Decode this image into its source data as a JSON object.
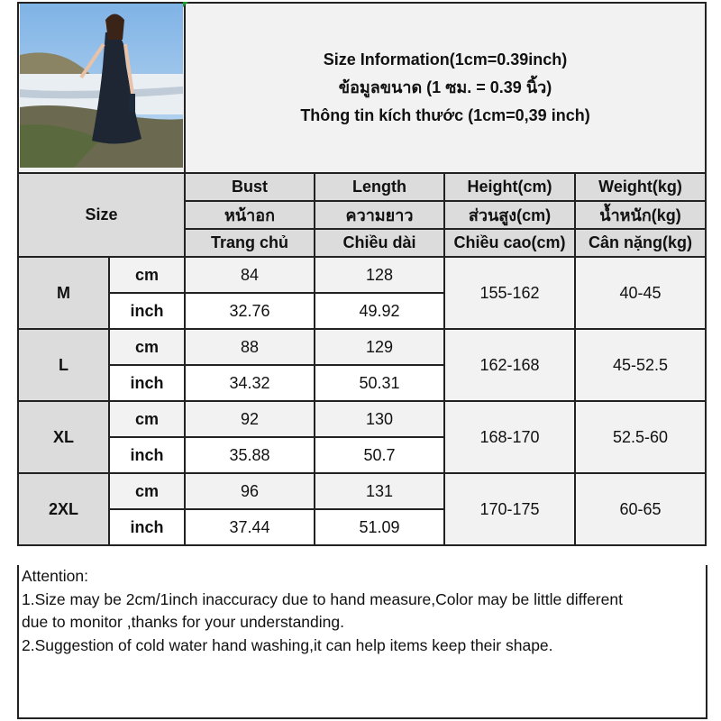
{
  "header": {
    "title_lines": [
      "Size Information(1cm=0.39inch)",
      "ข้อมูลขนาด (1 ซม. = 0.39 นิ้ว)",
      "Thông tin kích thước (1cm=0,39 inch)"
    ]
  },
  "photo": {
    "alt": "model-photo"
  },
  "size_label": "Size",
  "columns": [
    {
      "en": "Bust",
      "th": "หน้าอก",
      "vi": "Trang chủ"
    },
    {
      "en": "Length",
      "th": "ความยาว",
      "vi": "Chiều dài"
    },
    {
      "en": "Height(cm)",
      "th": "ส่วนสูง(cm)",
      "vi": "Chiều cao(cm)"
    },
    {
      "en": "Weight(kg)",
      "th": "น้ำหนัก(kg)",
      "vi": "Cân nặng(kg)"
    }
  ],
  "rows": [
    {
      "size": "M",
      "cm_label": "cm",
      "inch_label": "inch",
      "bust_cm": "84",
      "length_cm": "128",
      "bust_inch": "32.76",
      "length_inch": "49.92",
      "height": "155-162",
      "weight": "40-45"
    },
    {
      "size": "L",
      "cm_label": "cm",
      "inch_label": "inch",
      "bust_cm": "88",
      "length_cm": "129",
      "bust_inch": "34.32",
      "length_inch": "50.31",
      "height": "162-168",
      "weight": "45-52.5"
    },
    {
      "size": "XL",
      "cm_label": "cm",
      "inch_label": "inch",
      "bust_cm": "92",
      "length_cm": "130",
      "bust_inch": "35.88",
      "length_inch": "50.7",
      "height": "168-170",
      "weight": "52.5-60"
    },
    {
      "size": "2XL",
      "cm_label": "cm",
      "inch_label": "inch",
      "bust_cm": "96",
      "length_cm": "131",
      "bust_inch": "37.44",
      "length_inch": "51.09",
      "height": "170-175",
      "weight": "60-65"
    }
  ],
  "attention": {
    "lines": [
      "Attention:",
      "1.Size may be 2cm/1inch inaccuracy due to hand measure,Color may be little different",
      "due to monitor ,thanks for your understanding.",
      "2.Suggestion of cold water hand washing,it can help items keep their shape."
    ]
  },
  "colors": {
    "header_bg": "#dcdcdc",
    "light_bg": "#f2f2f2",
    "border": "#222222"
  }
}
